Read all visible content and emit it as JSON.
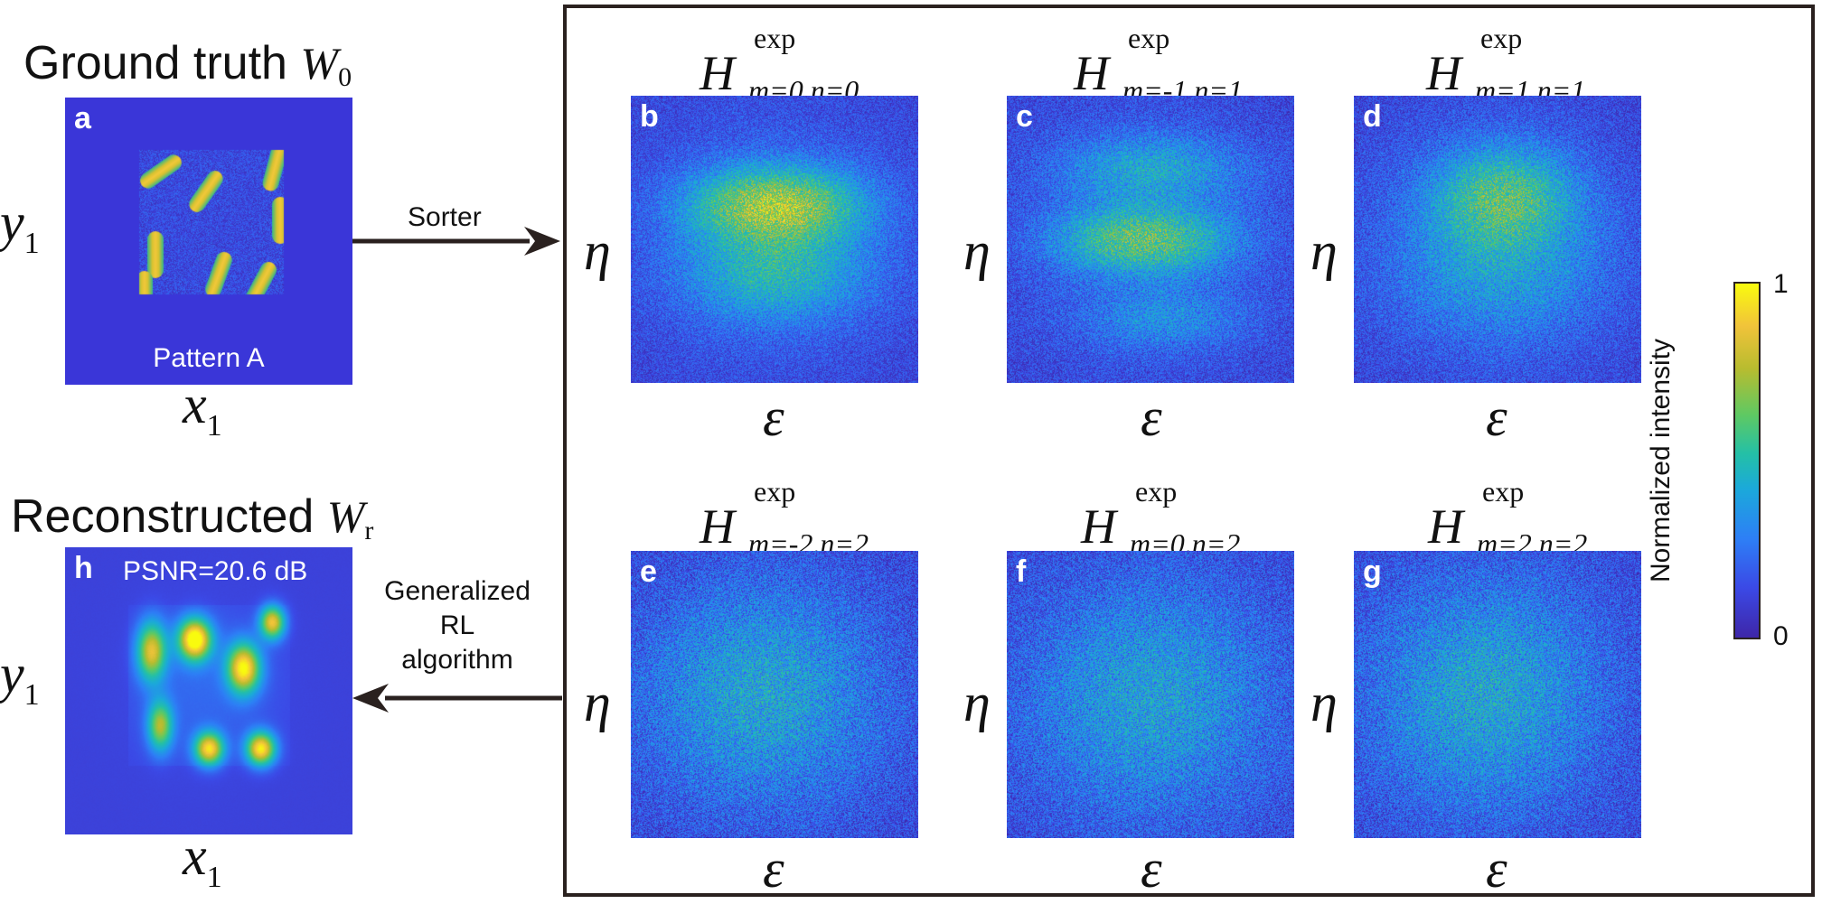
{
  "left": {
    "top_title": {
      "text": "Ground truth",
      "symbol": "W",
      "subscript": "0"
    },
    "bottom_title": {
      "text": "Reconstructed",
      "symbol": "W",
      "subscript": "r"
    }
  },
  "panels": {
    "a": {
      "letter": "a",
      "caption": "Pattern A"
    },
    "h": {
      "letter": "h",
      "caption": "PSNR=20.6 dB"
    },
    "b": {
      "letter": "b",
      "title": "H",
      "sup": "exp",
      "sub": "m=0,n=0"
    },
    "c": {
      "letter": "c",
      "title": "H",
      "sup": "exp",
      "sub": "m=-1,n=1"
    },
    "d": {
      "letter": "d",
      "title": "H",
      "sup": "exp",
      "sub": "m=1,n=1"
    },
    "e": {
      "letter": "e",
      "title": "H",
      "sup": "exp",
      "sub": "m=-2,n=2"
    },
    "f": {
      "letter": "f",
      "title": "H",
      "sup": "exp",
      "sub": "m=0,n=2"
    },
    "g": {
      "letter": "g",
      "title": "H",
      "sup": "exp",
      "sub": "m=2,n=2"
    }
  },
  "axes": {
    "x": "x",
    "y": "y",
    "x_sub": "1",
    "y_sub": "1",
    "eps": "ε",
    "eta": "η"
  },
  "arrows": {
    "sorter": "Sorter",
    "reconstruction": [
      "Generalized",
      "RL",
      "algorithm"
    ]
  },
  "colorbar": {
    "label": "Normalized intensity",
    "max": "1",
    "min": "0"
  },
  "colors": {
    "background": "#3a36d8",
    "frame": "#2a211f",
    "colormap": [
      "#3e26a8",
      "#3b49e6",
      "#2d7ff6",
      "#1ba9da",
      "#24c0a6",
      "#5fc962",
      "#b8bc2f",
      "#f1c33a",
      "#f9fb0e"
    ]
  }
}
